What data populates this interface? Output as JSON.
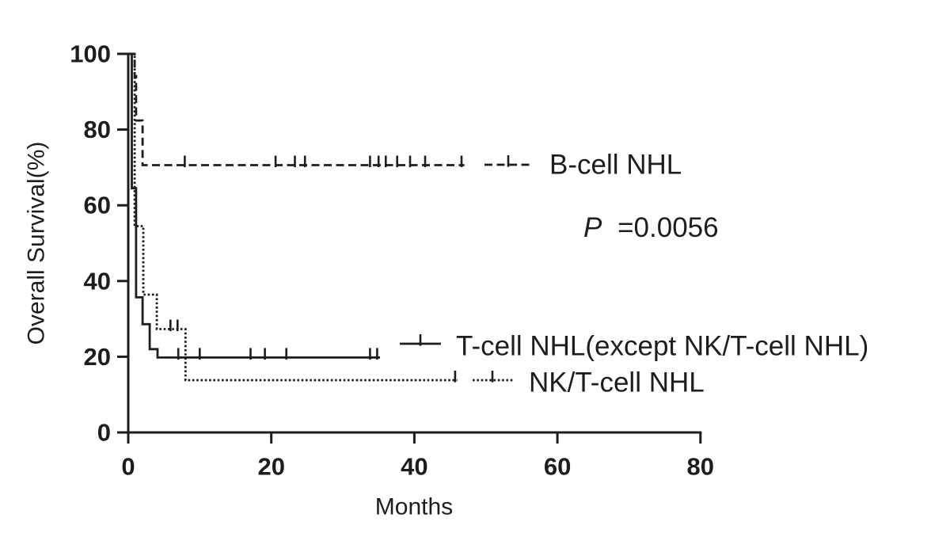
{
  "colors": {
    "ink": "#1d1d1d",
    "background": "#ffffff"
  },
  "chart_data": {
    "type": "line",
    "subtype": "kaplan-meier-step",
    "title": "",
    "xlabel": "Months",
    "ylabel": "Overall Survival(%)",
    "xlim": [
      0,
      80
    ],
    "ylim": [
      0,
      100
    ],
    "xticks": [
      0,
      20,
      40,
      60,
      80
    ],
    "yticks": [
      0,
      20,
      40,
      60,
      80,
      100
    ],
    "grid": false,
    "legend_position": "inline-right",
    "annotation": {
      "p_symbol": "P",
      "p_value": "=0.0056"
    },
    "series": [
      {
        "name": "B-cell NHL",
        "line_style": "long-dash",
        "points": [
          [
            0,
            100
          ],
          [
            0.9,
            100
          ],
          [
            0.9,
            94.1
          ],
          [
            1.1,
            94.1
          ],
          [
            1.1,
            82.4
          ],
          [
            2,
            82.4
          ],
          [
            2,
            70.6
          ],
          [
            47,
            70.6
          ]
        ],
        "censor_marks": [
          [
            7.9,
            70.6
          ],
          [
            20.6,
            70.6
          ],
          [
            23.3,
            70.6
          ],
          [
            24.7,
            70.6
          ],
          [
            33.8,
            70.6
          ],
          [
            35,
            70.6
          ],
          [
            36,
            70.6
          ],
          [
            37.6,
            70.6
          ],
          [
            39.4,
            70.6
          ],
          [
            41.5,
            70.6
          ],
          [
            46.6,
            70.6
          ]
        ]
      },
      {
        "name": "T-cell NHL(except NK/T-cell NHL)",
        "line_style": "solid",
        "points": [
          [
            0,
            100
          ],
          [
            0.5,
            100
          ],
          [
            0.5,
            64.5
          ],
          [
            1.1,
            64.5
          ],
          [
            1.1,
            35.7
          ],
          [
            2,
            35.7
          ],
          [
            2,
            28.6
          ],
          [
            3,
            28.6
          ],
          [
            3,
            22
          ],
          [
            4.1,
            22
          ],
          [
            4.1,
            19.8
          ],
          [
            35.2,
            19.8
          ]
        ],
        "censor_marks": [
          [
            7,
            19.8
          ],
          [
            10,
            19.8
          ],
          [
            17.1,
            19.8
          ],
          [
            19.1,
            19.8
          ],
          [
            22.1,
            19.8
          ],
          [
            33.8,
            19.8
          ],
          [
            34.8,
            19.8
          ]
        ]
      },
      {
        "name": "NK/T-cell NHL",
        "line_style": "dotted",
        "points": [
          [
            0,
            100
          ],
          [
            0.9,
            100
          ],
          [
            0.9,
            54.5
          ],
          [
            2.1,
            54.5
          ],
          [
            2.1,
            36.4
          ],
          [
            4,
            36.4
          ],
          [
            4,
            27.3
          ],
          [
            8,
            27.3
          ],
          [
            8,
            13.8
          ],
          [
            46,
            13.8
          ]
        ],
        "censor_marks": [
          [
            5.9,
            27.3
          ],
          [
            6.9,
            27.3
          ],
          [
            45.7,
            13.8
          ]
        ]
      }
    ]
  }
}
